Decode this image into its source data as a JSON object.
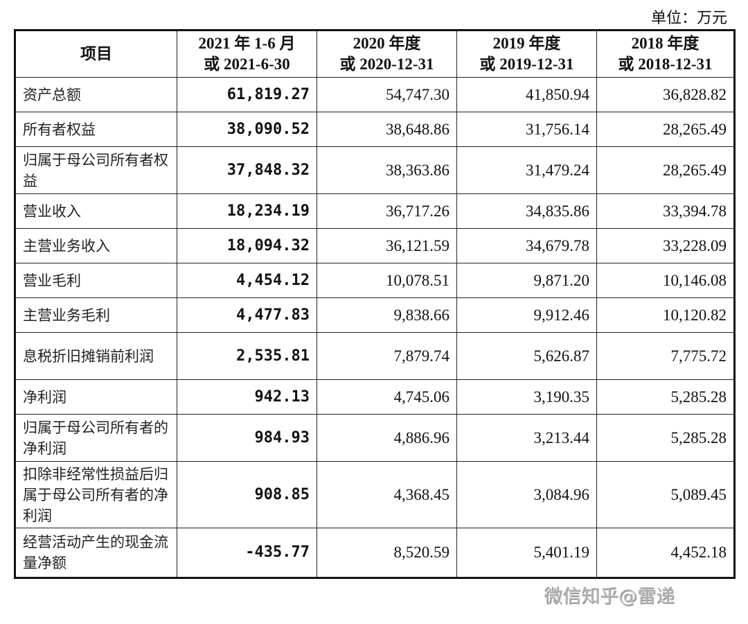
{
  "unit_label": "单位：万元",
  "headers": [
    "项目",
    "2021 年 1-6 月\n或 2021-6-30",
    "2020 年度\n或 2020-12-31",
    "2019 年度\n或 2019-12-31",
    "2018 年度\n或 2018-12-31"
  ],
  "rows": [
    {
      "label": "资产总额",
      "values": [
        "61,819.27",
        "54,747.30",
        "41,850.94",
        "36,828.82"
      ]
    },
    {
      "label": "所有者权益",
      "values": [
        "38,090.52",
        "38,648.86",
        "31,756.14",
        "28,265.49"
      ]
    },
    {
      "label": "归属于母公司所有者权益",
      "values": [
        "37,848.32",
        "38,363.86",
        "31,479.24",
        "28,265.49"
      ]
    },
    {
      "label": "营业收入",
      "values": [
        "18,234.19",
        "36,717.26",
        "34,835.86",
        "33,394.78"
      ]
    },
    {
      "label": "主营业务收入",
      "values": [
        "18,094.32",
        "36,121.59",
        "34,679.78",
        "33,228.09"
      ]
    },
    {
      "label": "营业毛利",
      "values": [
        "4,454.12",
        "10,078.51",
        "9,871.20",
        "10,146.08"
      ]
    },
    {
      "label": "主营业务毛利",
      "values": [
        "4,477.83",
        "9,838.66",
        "9,912.46",
        "10,120.82"
      ]
    },
    {
      "label": "息税折旧摊销前利润",
      "values": [
        "2,535.81",
        "7,879.74",
        "5,626.87",
        "7,775.72"
      ]
    },
    {
      "label": "净利润",
      "values": [
        "942.13",
        "4,745.06",
        "3,190.35",
        "5,285.28"
      ]
    },
    {
      "label": "归属于母公司所有者的净利润",
      "values": [
        "984.93",
        "4,886.96",
        "3,213.44",
        "5,285.28"
      ]
    },
    {
      "label": "扣除非经常性损益后归属于母公司所有者的净利润",
      "values": [
        "908.85",
        "4,368.45",
        "3,084.96",
        "5,089.45"
      ]
    },
    {
      "label": "经营活动产生的现金流量净额",
      "values": [
        "-435.77",
        "8,520.59",
        "5,401.19",
        "4,452.18"
      ]
    }
  ],
  "watermark": "微信知乎@雷递"
}
